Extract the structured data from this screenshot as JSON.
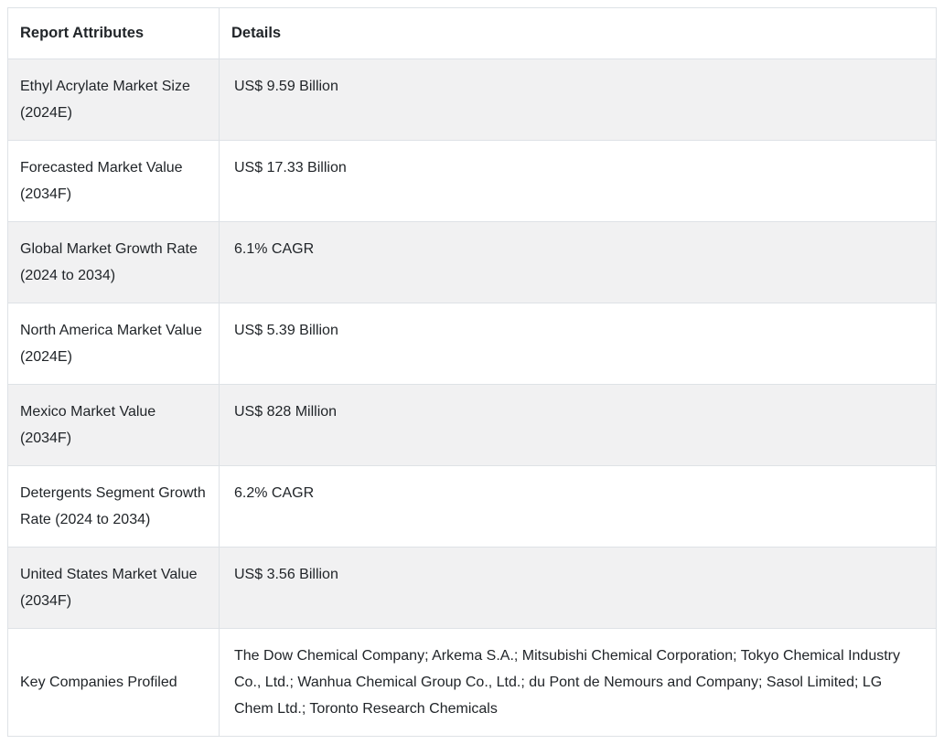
{
  "table": {
    "columns": [
      {
        "label": "Report Attributes"
      },
      {
        "label": "Details"
      }
    ],
    "rows": [
      {
        "attribute": "Ethyl Acrylate Market Size (2024E)",
        "detail": "US$ 9.59 Billion"
      },
      {
        "attribute": "Forecasted Market Value (2034F)",
        "detail": "US$ 17.33 Billion"
      },
      {
        "attribute": "Global Market Growth Rate (2024 to 2034)",
        "detail": "6.1% CAGR"
      },
      {
        "attribute": "North America Market Value (2024E)",
        "detail": "US$ 5.39 Billion"
      },
      {
        "attribute": "Mexico Market Value (2034F)",
        "detail": "US$ 828 Million"
      },
      {
        "attribute": "Detergents Segment Growth Rate (2024 to 2034)",
        "detail": "6.2% CAGR"
      },
      {
        "attribute": "United States Market Value (2034F)",
        "detail": "US$ 3.56 Billion"
      },
      {
        "attribute": "Key Companies Profiled",
        "detail": "The Dow Chemical Company; Arkema S.A.; Mitsubishi Chemical Corporation; Tokyo Chemical Industry Co., Ltd.; Wanhua Chemical Group Co., Ltd.; du Pont de Nemours and Company; Sasol Limited; LG Chem Ltd.; Toronto Research Chemicals"
      }
    ],
    "colors": {
      "stripe_bg": "#f1f1f2",
      "border": "#dee2e6",
      "text": "#212529",
      "white_bg": "#ffffff"
    }
  }
}
